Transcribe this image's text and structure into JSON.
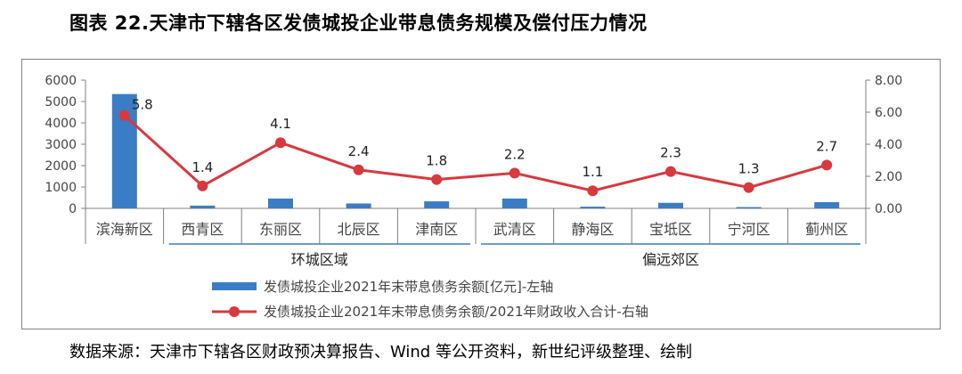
{
  "title": "图表 22.天津市下辖各区发债城投企业带息债务规模及偿付压力情况",
  "source": "数据来源：天津市下辖各区财政预决算报告、Wind 等公开资料，新世纪评级整理、绘制",
  "colors": {
    "bar": "#3b7dc4",
    "line": "#d7393f",
    "group_rule": "#3b7dc4",
    "axis": "#808080"
  },
  "chart_data": {
    "type": "bar",
    "categories": [
      "滨海新区",
      "西青区",
      "东丽区",
      "北辰区",
      "津南区",
      "武清区",
      "静海区",
      "宝坻区",
      "宁河区",
      "蓟州区"
    ],
    "groups": [
      {
        "label": "环城区域",
        "from": 1,
        "to": 4
      },
      {
        "label": "偏远郊区",
        "from": 5,
        "to": 9
      }
    ],
    "series": [
      {
        "name": "发债城投企业2021年末带息债务余额[亿元]-左轴",
        "type": "bar",
        "axis": "left",
        "values": [
          5350,
          130,
          460,
          230,
          330,
          460,
          80,
          260,
          60,
          290
        ]
      },
      {
        "name": "发债城投企业2021年末带息债务余额/2021年财政收入合计-右轴",
        "type": "line",
        "axis": "right",
        "values": [
          5.8,
          1.4,
          4.1,
          2.4,
          1.8,
          2.2,
          1.1,
          2.3,
          1.3,
          2.7
        ],
        "labels": [
          "5.8",
          "1.4",
          "4.1",
          "2.4",
          "1.8",
          "2.2",
          "1.1",
          "2.3",
          "1.3",
          "2.7"
        ]
      }
    ],
    "y_left": {
      "min": 0,
      "max": 6000,
      "ticks": [
        "0",
        "1000",
        "2000",
        "3000",
        "4000",
        "5000",
        "6000"
      ]
    },
    "y_right": {
      "min": 0,
      "max": 8,
      "ticks": [
        "0.00",
        "2.00",
        "4.00",
        "6.00",
        "8.00"
      ]
    },
    "legend_position": "bottom"
  }
}
